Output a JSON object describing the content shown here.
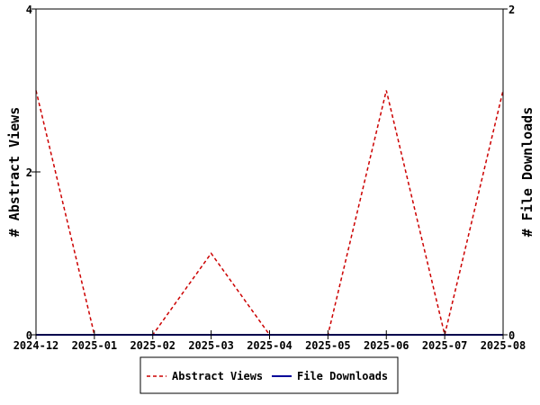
{
  "chart_data": {
    "type": "line",
    "x": [
      "2024-12",
      "2025-01",
      "2025-02",
      "2025-03",
      "2025-04",
      "2025-05",
      "2025-06",
      "2025-07",
      "2025-08"
    ],
    "series": [
      {
        "name": "Abstract Views",
        "axis": "left",
        "color": "#cc0000",
        "style": "dashed",
        "values": [
          3,
          0,
          0,
          1,
          0,
          0,
          3,
          0,
          3
        ]
      },
      {
        "name": "File Downloads",
        "axis": "right",
        "color": "#000099",
        "style": "solid",
        "values": [
          0,
          0,
          0,
          0,
          0,
          0,
          0,
          0,
          0
        ]
      }
    ],
    "ylabel_left": "# Abstract Views",
    "ylabel_right": "# File Downloads",
    "ylim_left": [
      0,
      4
    ],
    "yticks_left": [
      0,
      2,
      4
    ],
    "ylim_right": [
      0,
      2
    ],
    "yticks_right": [
      0,
      2
    ],
    "grid": false,
    "legend_placement": "bottom-center"
  }
}
